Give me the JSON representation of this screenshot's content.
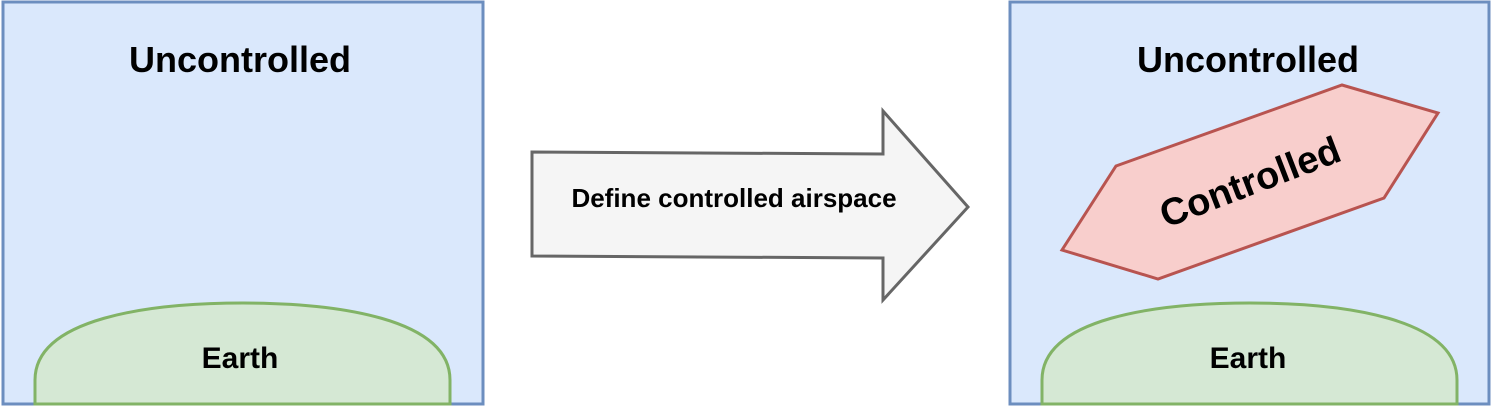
{
  "colors": {
    "airspace_fill": "#dae8fc",
    "airspace_stroke": "#6c8ebf",
    "earth_fill": "#d5e8d4",
    "earth_stroke": "#82b366",
    "arrow_fill": "#f5f5f5",
    "arrow_stroke": "#666666",
    "controlled_fill": "#f8cecc",
    "controlled_stroke": "#b85450"
  },
  "before": {
    "airspace_label": "Uncontrolled",
    "earth_label": "Earth"
  },
  "transition": {
    "label": "Define controlled airspace"
  },
  "after": {
    "airspace_label": "Uncontrolled",
    "controlled_label": "Controlled",
    "earth_label": "Earth"
  }
}
